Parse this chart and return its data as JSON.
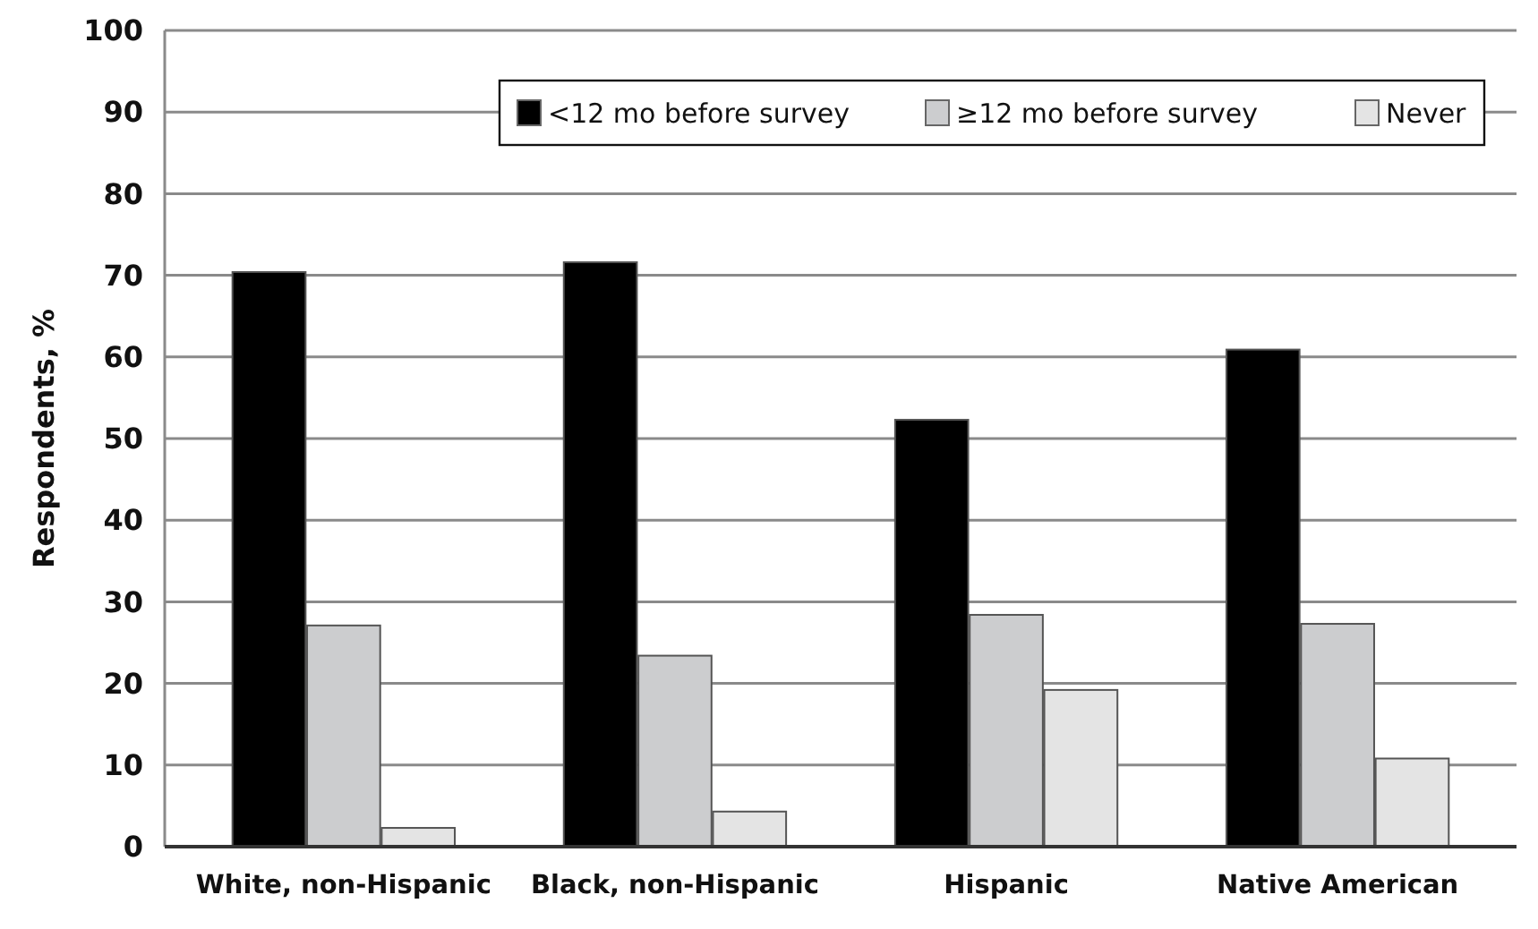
{
  "chart_data": {
    "type": "bar",
    "ylabel": "Respondents, %",
    "categories": [
      "White, non-Hispanic",
      "Black,  non-Hispanic",
      "Hispanic",
      "Native American"
    ],
    "series": [
      {
        "name": "<12 mo before survey",
        "color": "#000000",
        "values": [
          70.4,
          71.6,
          52.3,
          60.9
        ]
      },
      {
        "name": "≥12 mo before survey",
        "color": "#cccdcf",
        "values": [
          27.1,
          23.4,
          28.4,
          27.3
        ]
      },
      {
        "name": "Never",
        "color": "#e4e4e4",
        "values": [
          2.3,
          4.3,
          19.2,
          10.8
        ]
      }
    ],
    "ylim": [
      0,
      100
    ],
    "yticks": [
      0,
      10,
      20,
      30,
      40,
      50,
      60,
      70,
      80,
      90,
      100
    ],
    "grid": "y",
    "legend": "top right"
  }
}
